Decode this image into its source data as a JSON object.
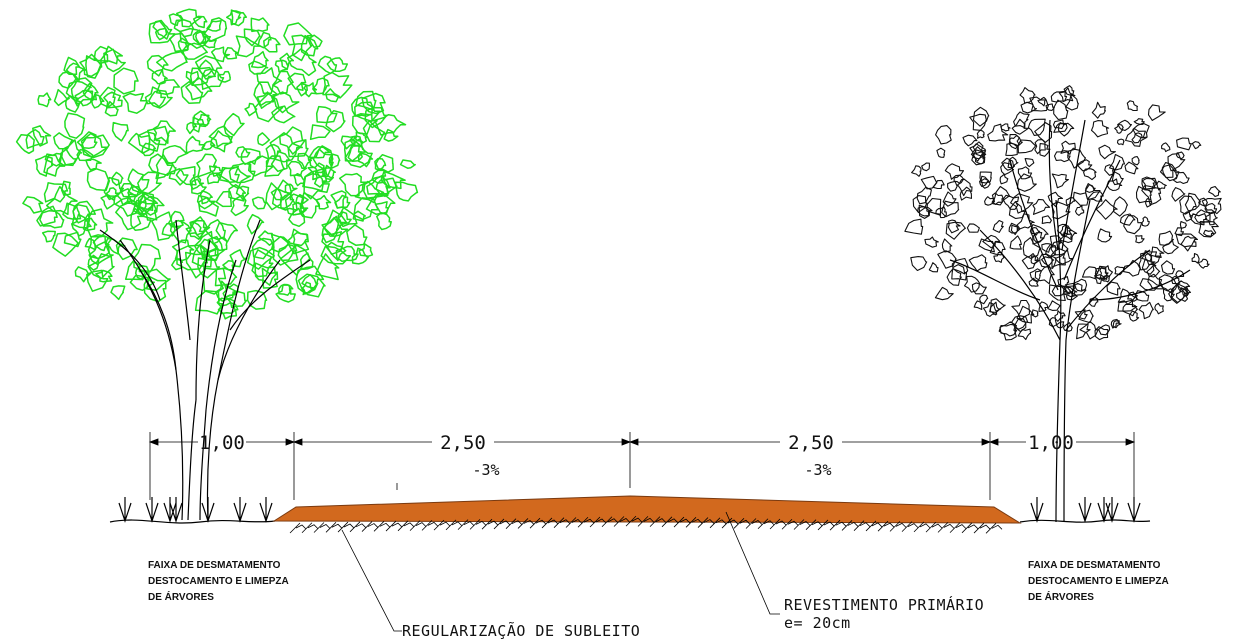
{
  "colors": {
    "pavement": "#D2691E",
    "pavement_edge": "#7a3a10",
    "left_tree": "#22dd22",
    "right_tree": "#111111",
    "lines": "#000000"
  },
  "dimensions": {
    "left_shoulder": "1,00",
    "left_lane": "2,50",
    "right_lane": "2,50",
    "right_shoulder": "1,00"
  },
  "slopes": {
    "left": "-3%",
    "right": "-3%"
  },
  "notes": {
    "left": [
      "FAIXA DE DESMATAMENTO",
      "DESTOCAMENTO E LIMEPZA",
      "DE ÁRVORES"
    ],
    "right": [
      "FAIXA DE DESMATAMENTO",
      "DESTOCAMENTO E LIMEPZA",
      "DE ÁRVORES"
    ]
  },
  "callouts": {
    "subgrade": "REGULARIZAÇÃO DE SUBLEITO",
    "surface_line1": "REVESTIMENTO PRIMÁRIO",
    "surface_line2": "e= 20cm"
  },
  "icons": {
    "left_tree": "tree-icon",
    "right_tree": "tree-icon",
    "grass": "grass-tuft-icon"
  }
}
